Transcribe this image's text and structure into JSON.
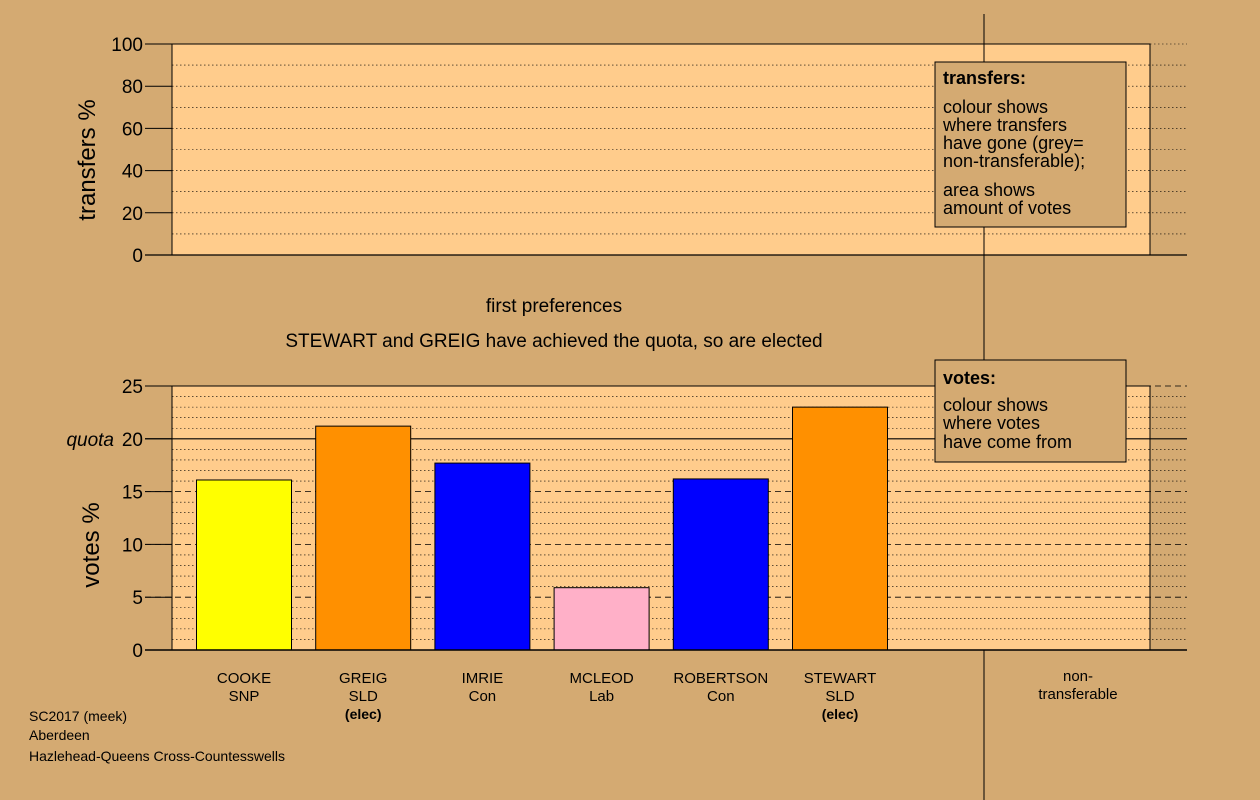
{
  "colors": {
    "background": "#d4aa72",
    "panel": "#ffcc8c",
    "legend_box": "#d4aa72"
  },
  "top_panel": {
    "ylabel": "transfers %",
    "yticks": [
      "0",
      "20",
      "40",
      "60",
      "80",
      "100"
    ],
    "ylim": [
      0,
      100
    ],
    "legend": {
      "title": "transfers:",
      "lines1": [
        "colour shows",
        "where transfers",
        "have gone (grey=",
        "non-transferable);"
      ],
      "lines2": [
        "area shows",
        "amount of votes"
      ]
    }
  },
  "captions": {
    "stage": "first preferences",
    "status": "STEWART and GREIG have achieved the quota, so are elected"
  },
  "chart_data": {
    "type": "bar",
    "ylabel": "votes %",
    "ylim": [
      0,
      25
    ],
    "yticks": [
      "0",
      "5",
      "10",
      "15",
      "20",
      "25"
    ],
    "quota_label": "quota",
    "quota": 20,
    "categories": [
      {
        "name": "COOKE",
        "party": "SNP",
        "status": "",
        "value": 16.1,
        "color": "#ffff00"
      },
      {
        "name": "GREIG",
        "party": "SLD",
        "status": "(elec)",
        "value": 21.2,
        "color": "#ff9000"
      },
      {
        "name": "IMRIE",
        "party": "Con",
        "status": "",
        "value": 17.7,
        "color": "#0000ff"
      },
      {
        "name": "MCLEOD",
        "party": "Lab",
        "status": "",
        "value": 5.9,
        "color": "#ffb0c8"
      },
      {
        "name": "ROBERTSON",
        "party": "Con",
        "status": "",
        "value": 16.2,
        "color": "#0000ff"
      },
      {
        "name": "STEWART",
        "party": "SLD",
        "status": "(elec)",
        "value": 23.0,
        "color": "#ff9000"
      }
    ],
    "nontransferable": {
      "line1": "non-",
      "line2": "transferable",
      "value": 0
    },
    "legend": {
      "title": "votes:",
      "lines": [
        "colour shows",
        "where votes",
        "have come from"
      ]
    }
  },
  "footer": {
    "line1": "SC2017 (meek)",
    "line2": "Aberdeen",
    "line3": "Hazlehead-Queens Cross-Countesswells"
  }
}
